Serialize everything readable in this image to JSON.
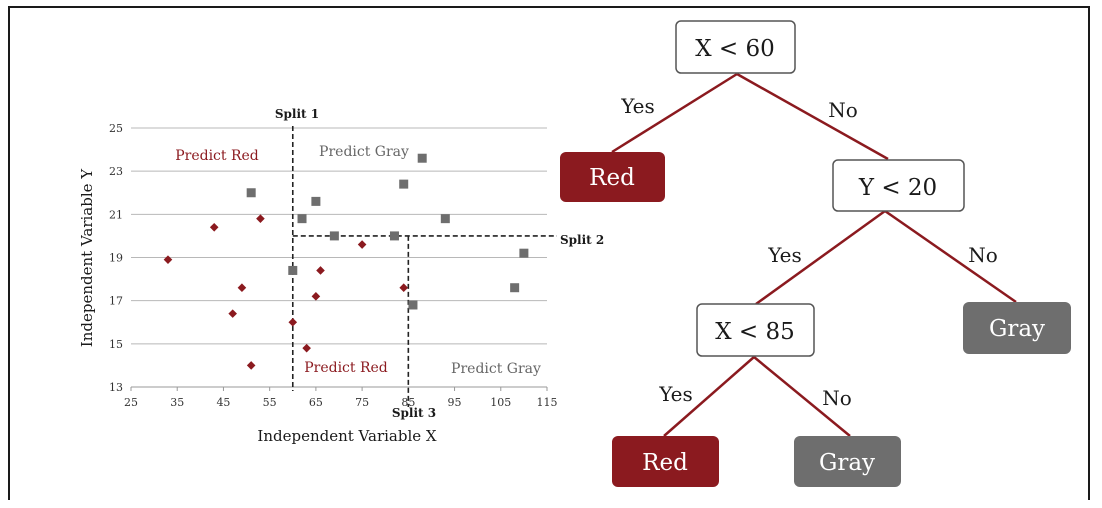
{
  "colors": {
    "red": "#8b1a1f",
    "gray": "#6e6e6e",
    "edge": "#8b1a1f"
  },
  "scatter": {
    "chart_data": {
      "type": "scatter",
      "xlabel": "Independent Variable X",
      "ylabel": "Independent Variable Y",
      "xlim": [
        25,
        115
      ],
      "ylim": [
        13,
        25
      ],
      "x_ticks": [
        25,
        35,
        45,
        55,
        65,
        75,
        85,
        95,
        105,
        115
      ],
      "y_ticks": [
        13,
        15,
        17,
        19,
        21,
        23,
        25
      ],
      "grid": "horizontal",
      "series": [
        {
          "name": "Red",
          "marker": "diamond",
          "points": [
            [
              33,
              18.9
            ],
            [
              43,
              20.4
            ],
            [
              47,
              16.4
            ],
            [
              49,
              17.6
            ],
            [
              51,
              14.0
            ],
            [
              53,
              20.8
            ],
            [
              60,
              16.0
            ],
            [
              63,
              14.8
            ],
            [
              65,
              17.2
            ],
            [
              66,
              18.4
            ],
            [
              75,
              19.6
            ],
            [
              84,
              17.6
            ]
          ]
        },
        {
          "name": "Gray",
          "marker": "square",
          "points": [
            [
              51,
              22.0
            ],
            [
              60,
              18.4
            ],
            [
              62,
              20.8
            ],
            [
              65,
              21.6
            ],
            [
              69,
              20.0
            ],
            [
              82,
              20.0
            ],
            [
              84,
              22.4
            ],
            [
              86,
              16.8
            ],
            [
              88,
              23.6
            ],
            [
              93,
              20.8
            ],
            [
              108,
              17.6
            ],
            [
              110,
              19.2
            ]
          ]
        }
      ],
      "splits": [
        {
          "label": "Split 1",
          "axis": "x",
          "value": 60
        },
        {
          "label": "Split 2",
          "axis": "y",
          "value": 20
        },
        {
          "label": "Split 3",
          "axis": "x",
          "value": 85
        }
      ],
      "regions": [
        {
          "label": "Predict Red",
          "class": "red"
        },
        {
          "label": "Predict Gray",
          "class": "gray"
        },
        {
          "label": "Predict Red",
          "class": "red"
        },
        {
          "label": "Predict Gray",
          "class": "gray"
        }
      ]
    }
  },
  "tree": {
    "root": "X < 60",
    "node2": "Y < 20",
    "node3": "X < 85",
    "leaf_red_1": "Red",
    "leaf_gray_1": "Gray",
    "leaf_red_2": "Red",
    "leaf_gray_2": "Gray",
    "yes": "Yes",
    "no": "No"
  }
}
